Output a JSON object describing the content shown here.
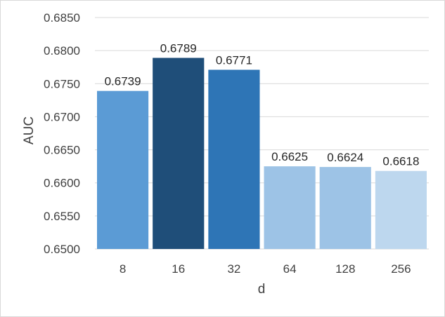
{
  "chart_data": {
    "type": "bar",
    "title": "",
    "xlabel": "d",
    "ylabel": "AUC",
    "categories": [
      "8",
      "16",
      "32",
      "64",
      "128",
      "256"
    ],
    "values": [
      0.6739,
      0.6789,
      0.6771,
      0.6625,
      0.6624,
      0.6618
    ],
    "value_labels": [
      "0.6739",
      "0.6789",
      "0.6771",
      "0.6625",
      "0.6624",
      "0.6618"
    ],
    "ylim": [
      0.65,
      0.685
    ],
    "yticks": [
      "0.6500",
      "0.6550",
      "0.6600",
      "0.6650",
      "0.6700",
      "0.6750",
      "0.6800",
      "0.6850"
    ],
    "grid": true,
    "legend": "none",
    "bar_colors": [
      "#5b9bd5",
      "#1f4e79",
      "#2e75b6",
      "#9dc3e6",
      "#9dc3e6",
      "#bdd7ee"
    ],
    "grid_color": "#d9d9d9"
  }
}
